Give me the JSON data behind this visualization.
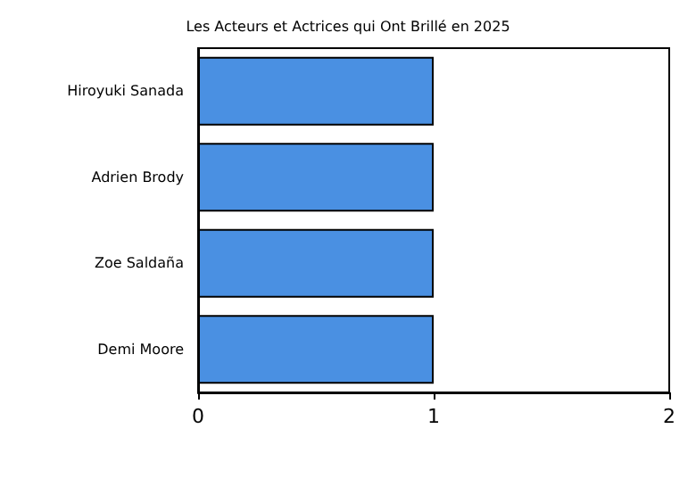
{
  "chart_data": {
    "type": "bar",
    "orientation": "horizontal",
    "title": "Les Acteurs et Actrices qui Ont Brillé en 2025",
    "categories": [
      "Hiroyuki Sanada",
      "Adrien Brody",
      "Zoe Saldaña",
      "Demi Moore"
    ],
    "values": [
      1,
      1,
      1,
      1
    ],
    "color": "#4a90e2",
    "xlim": [
      0,
      2
    ],
    "xticks": [
      0,
      1,
      2
    ],
    "grid": false
  }
}
